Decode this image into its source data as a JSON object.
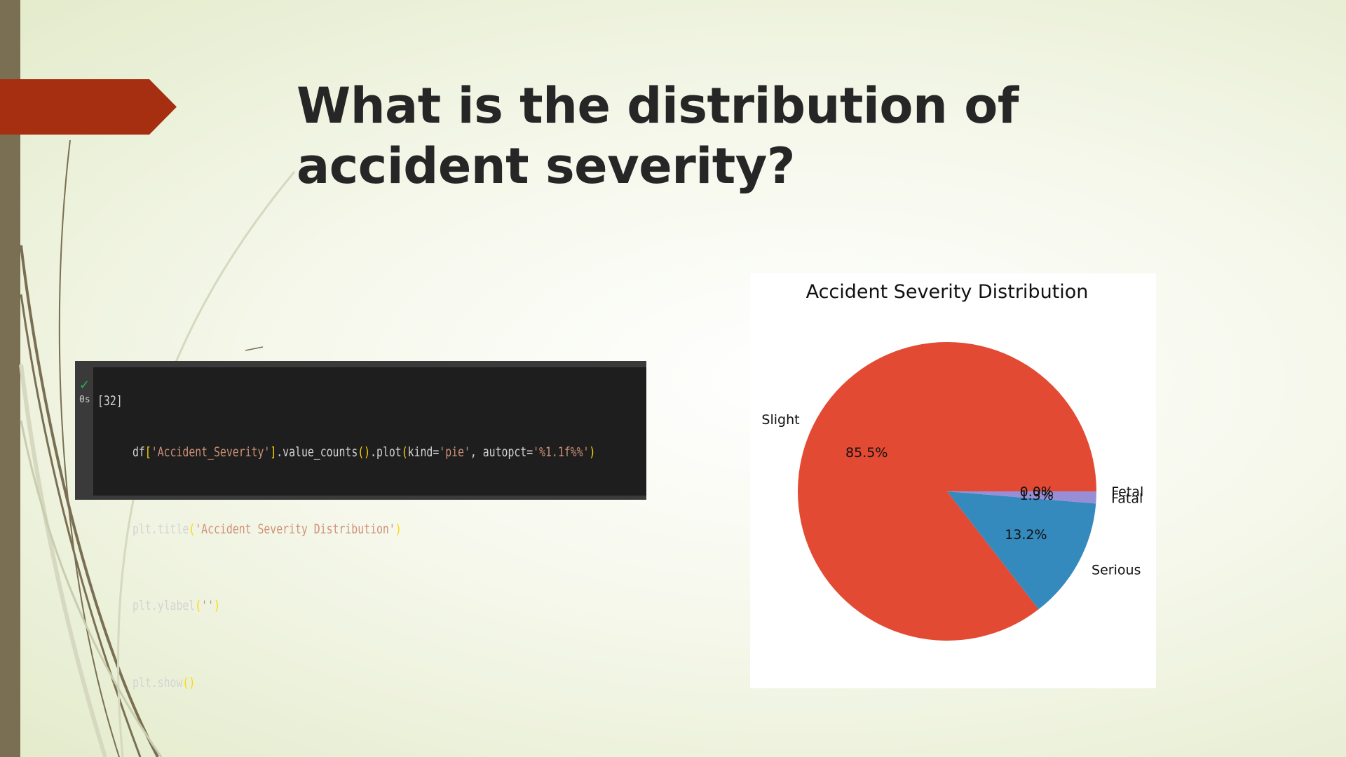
{
  "slide": {
    "title": "What is the distribution of accident severity?"
  },
  "code_cell": {
    "execution_count": "[32]",
    "exec_time": "0s",
    "lines": [
      "df['Accident_Severity'].value_counts().plot(kind='pie', autopct='%1.1f%%')",
      "plt.title('Accident Severity Distribution')",
      "plt.ylabel('')",
      "plt.show()"
    ]
  },
  "colors": {
    "accent_arrow": "#a52f10",
    "left_bar": "#7a6f52"
  },
  "chart_data": {
    "type": "pie",
    "title": "Accident Severity Distribution",
    "slices": [
      {
        "label": "Slight",
        "value": 85.5,
        "pct_label": "85.5%",
        "color": "#e24a33"
      },
      {
        "label": "Serious",
        "value": 13.2,
        "pct_label": "13.2%",
        "color": "#348abd"
      },
      {
        "label": "Fatal",
        "value": 1.3,
        "pct_label": "1.3%",
        "color": "#988ed5"
      },
      {
        "label": "Fetal",
        "value": 0.0,
        "pct_label": "0.0%",
        "color": "#777777"
      }
    ]
  }
}
